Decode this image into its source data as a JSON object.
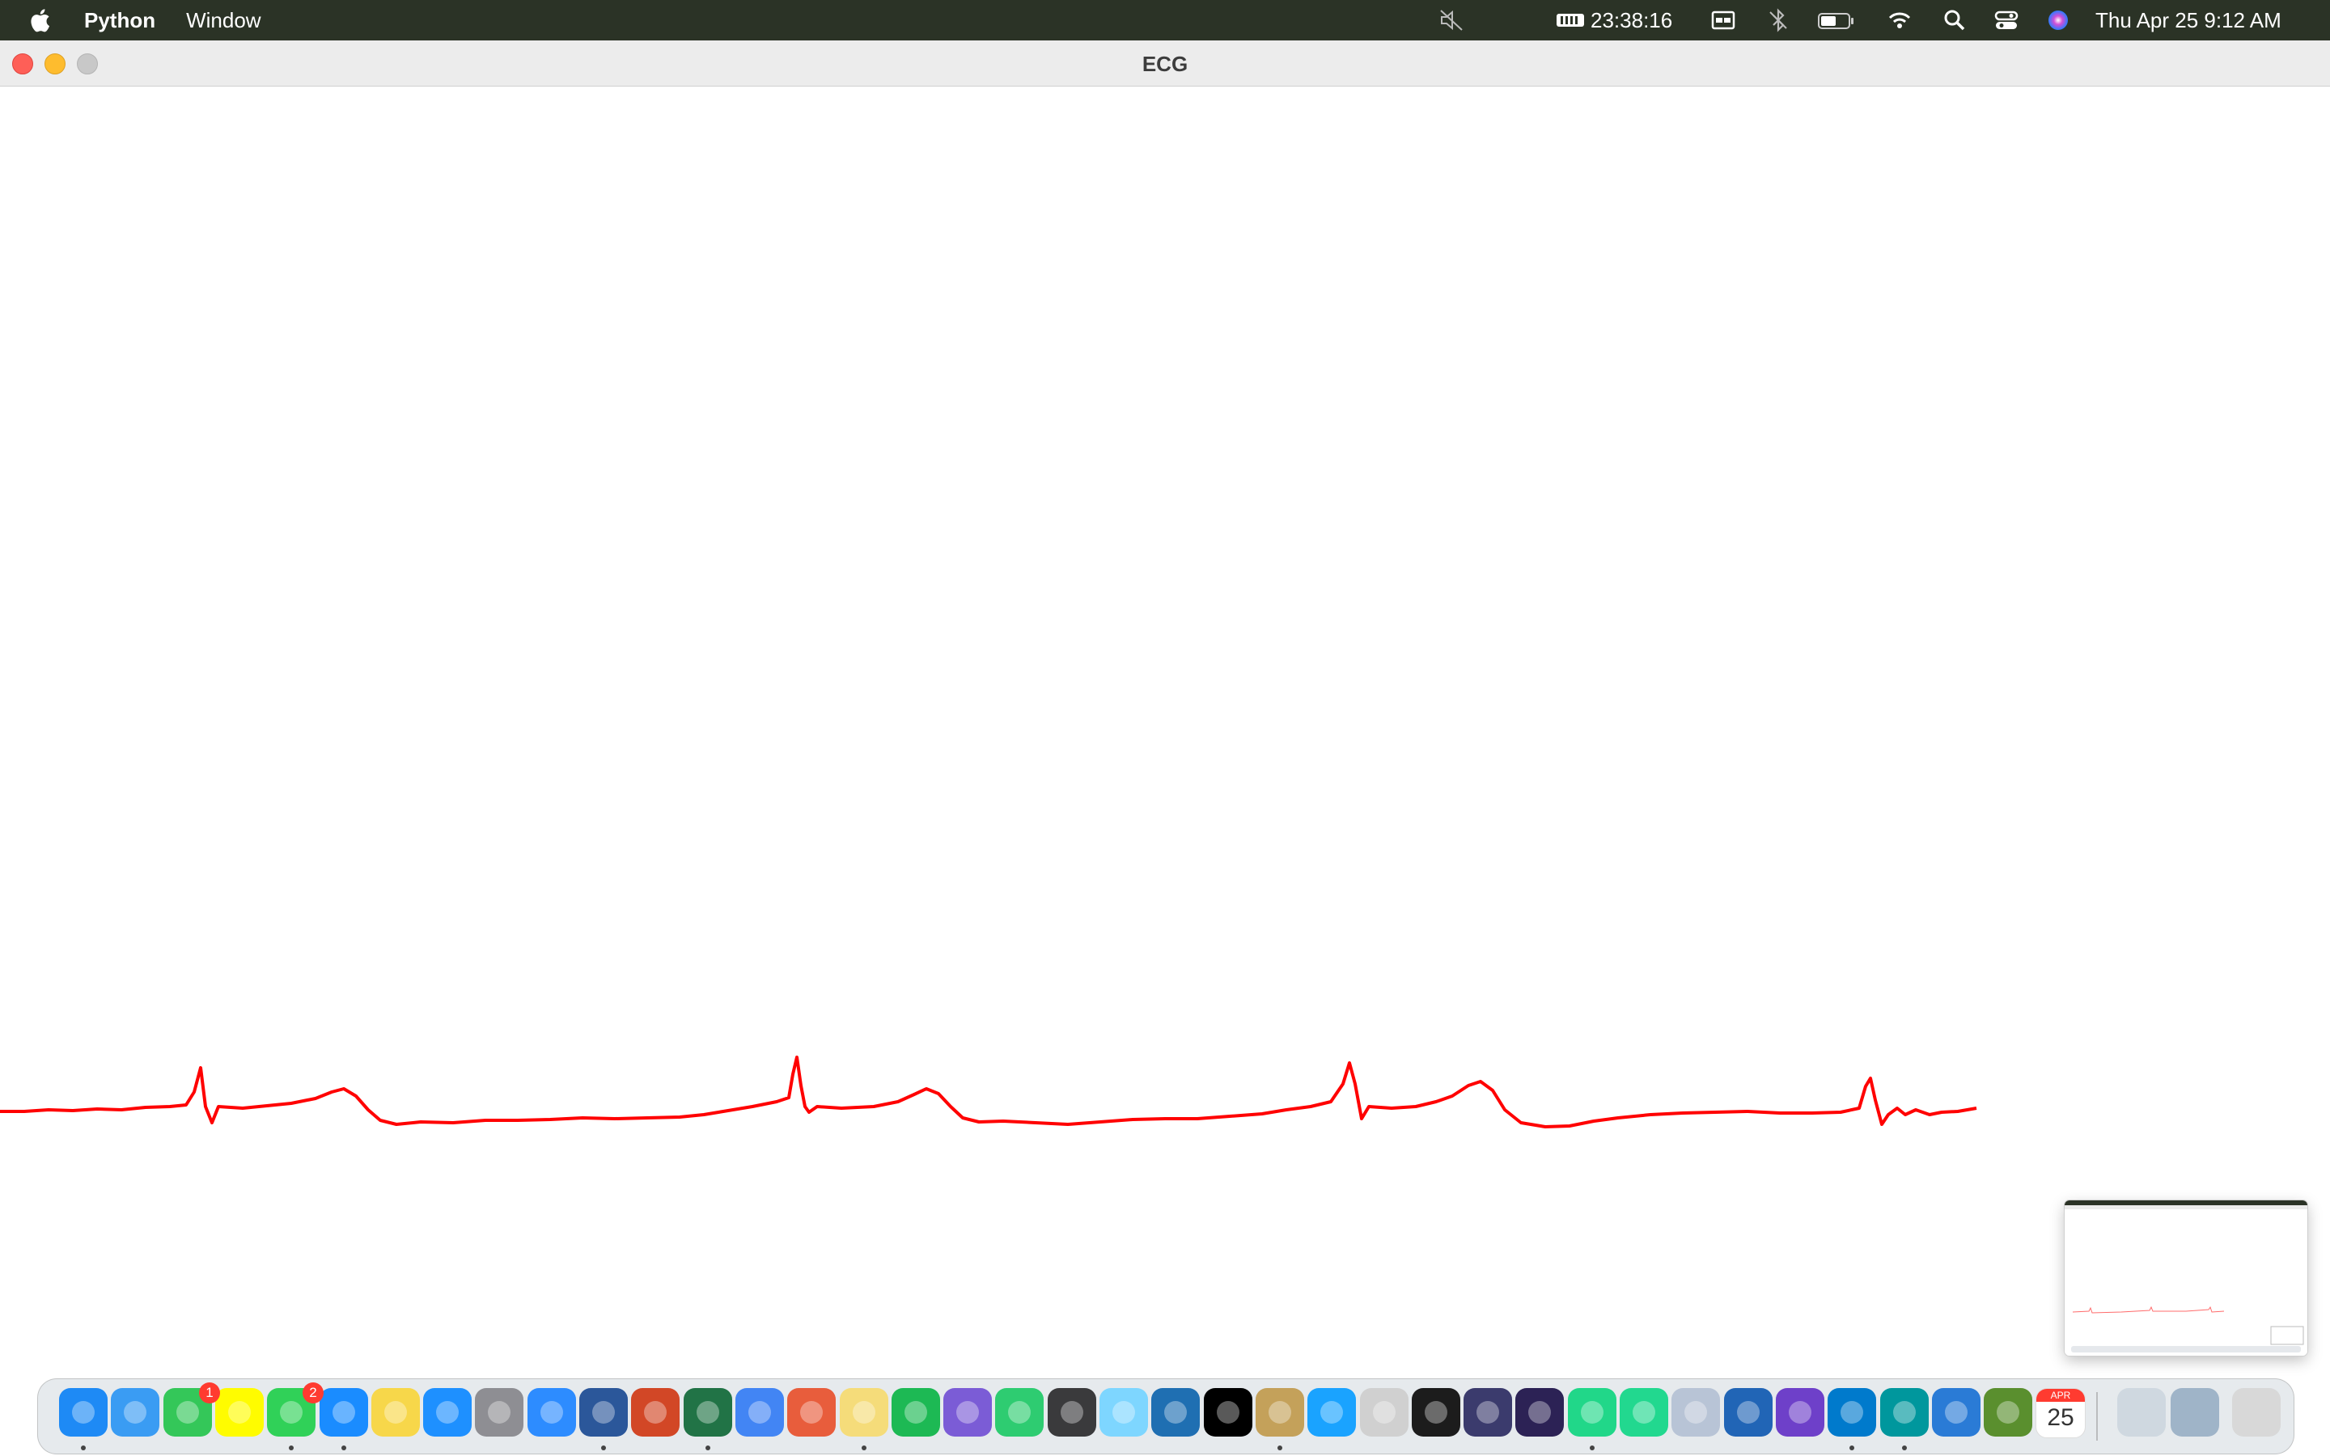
{
  "menubar": {
    "app_name": "Python",
    "menu_window": "Window",
    "timer": "23:38:16",
    "datetime": "Thu Apr 25  9:12 AM",
    "background": "#2b3326"
  },
  "window": {
    "title": "ECG"
  },
  "ecg": {
    "line_color": "#ff0000",
    "beats": 4,
    "note": "single ECG trace with 4 QRS complexes on white canvas"
  },
  "dock": {
    "apps": [
      {
        "name": "finder-icon",
        "color": "#1e8af5",
        "running": true
      },
      {
        "name": "mail-icon",
        "color": "#3a9cf3",
        "running": false
      },
      {
        "name": "facetime-icon",
        "color": "#34c759",
        "running": false,
        "badge": "1"
      },
      {
        "name": "snapchat-icon",
        "color": "#fffc00",
        "running": false
      },
      {
        "name": "messages-icon",
        "color": "#30d158",
        "running": true,
        "badge": "2"
      },
      {
        "name": "safari-icon",
        "color": "#1a8cff",
        "running": true
      },
      {
        "name": "notes-icon",
        "color": "#f7d74a",
        "running": false
      },
      {
        "name": "app-store-icon",
        "color": "#1e90ff",
        "running": false
      },
      {
        "name": "system-settings-icon",
        "color": "#8e8e93",
        "running": false
      },
      {
        "name": "zoom-icon",
        "color": "#2d8cff",
        "running": false
      },
      {
        "name": "word-icon",
        "color": "#2b579a",
        "running": true
      },
      {
        "name": "powerpoint-icon",
        "color": "#d24726",
        "running": false
      },
      {
        "name": "excel-icon",
        "color": "#217346",
        "running": true
      },
      {
        "name": "chrome-icon",
        "color": "#4285f4",
        "running": false
      },
      {
        "name": "pinwheel-icon",
        "color": "#e85d3c",
        "running": false
      },
      {
        "name": "stickies-icon",
        "color": "#f5dc7a",
        "running": true
      },
      {
        "name": "spotify-icon",
        "color": "#1db954",
        "running": false
      },
      {
        "name": "imovie-icon",
        "color": "#7b5cd6",
        "running": false
      },
      {
        "name": "find-my-icon",
        "color": "#2ecc71",
        "running": false
      },
      {
        "name": "monitor-icon",
        "color": "#3a3a3c",
        "running": false
      },
      {
        "name": "preview-icon",
        "color": "#7ed6ff",
        "running": false
      },
      {
        "name": "vysor-icon",
        "color": "#1f6fb2",
        "running": false
      },
      {
        "name": "pycharm-ce-icon",
        "color": "#000000",
        "running": false
      },
      {
        "name": "gimp-icon",
        "color": "#c4a15a",
        "running": true
      },
      {
        "name": "vscode-insiders-icon",
        "color": "#1aa3ff",
        "running": false
      },
      {
        "name": "text-editor-icon",
        "color": "#d0d0d0",
        "running": false
      },
      {
        "name": "terminal-icon",
        "color": "#1c1c1c",
        "running": false
      },
      {
        "name": "gears-icon",
        "color": "#3b3b6d",
        "running": false
      },
      {
        "name": "eclipse-icon",
        "color": "#2c2255",
        "running": false
      },
      {
        "name": "pycharm-icon",
        "color": "#21d789",
        "running": true
      },
      {
        "name": "datagrip-icon",
        "color": "#22d88f",
        "running": false
      },
      {
        "name": "r-gui-icon",
        "color": "#b8c4d6",
        "running": false
      },
      {
        "name": "rstudio-icon",
        "color": "#2165b6",
        "running": false
      },
      {
        "name": "github-desktop-icon",
        "color": "#6e40c9",
        "running": false
      },
      {
        "name": "vscode-icon",
        "color": "#007acc",
        "running": true
      },
      {
        "name": "arduino-icon",
        "color": "#00979d",
        "running": true
      },
      {
        "name": "brave-icon",
        "color": "#2a7bd6",
        "running": false
      },
      {
        "name": "minecraft-icon",
        "color": "#5a8f2e",
        "running": false
      },
      {
        "name": "calendar-icon",
        "color": "#ffffff",
        "running": false,
        "month": "APR",
        "day": "25"
      }
    ],
    "right": [
      {
        "name": "archive-folder-icon",
        "color": "#cfd8e0"
      },
      {
        "name": "screenshot-folder-icon",
        "color": "#9fb4c8"
      },
      {
        "name": "trash-icon",
        "color": "#d8d8d8"
      }
    ]
  }
}
